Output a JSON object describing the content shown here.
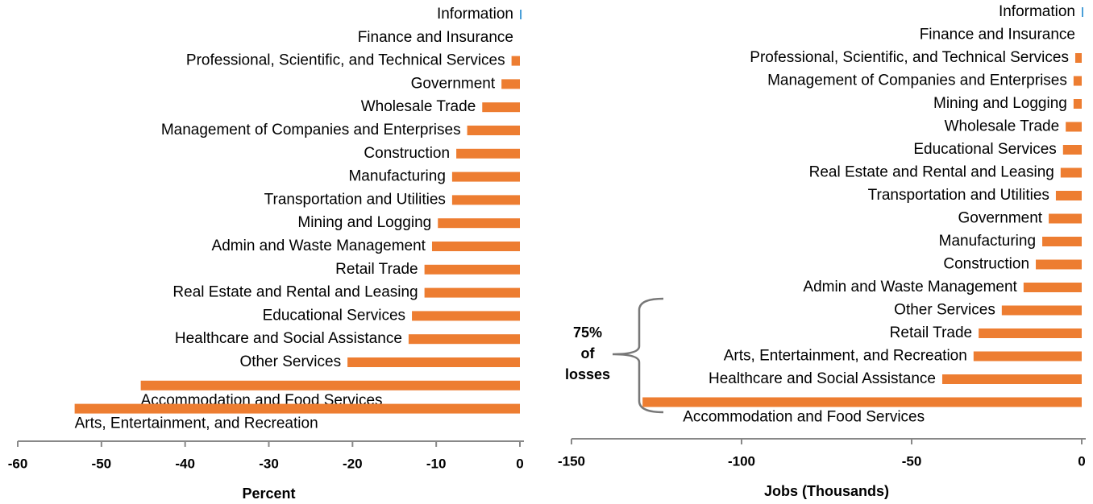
{
  "chart_data": [
    {
      "type": "bar",
      "orientation": "horizontal",
      "categories": [
        "Information",
        "Finance and Insurance",
        "Professional, Scientific, and Technical Services",
        "Government",
        "Wholesale Trade",
        "Management of Companies and Enterprises",
        "Construction",
        "Manufacturing",
        "Transportation and Utilities",
        "Mining and Logging",
        "Admin and Waste Management",
        "Retail Trade",
        "Real Estate and Rental and Leasing",
        "Educational Services",
        "Healthcare and Social Assistance",
        "Other Services",
        "Accommodation and Food Services",
        "Arts, Entertainment, and Recreation"
      ],
      "values": [
        0.2,
        0,
        -1.0,
        -2.2,
        -4.5,
        -6.3,
        -7.6,
        -8.1,
        -8.1,
        -9.8,
        -10.5,
        -11.4,
        -11.4,
        -12.9,
        -13.3,
        -20.6,
        -45.3,
        -53.2
      ],
      "colors": [
        "#4a9fd8",
        "#ed7d31",
        "#ed7d31",
        "#ed7d31",
        "#ed7d31",
        "#ed7d31",
        "#ed7d31",
        "#ed7d31",
        "#ed7d31",
        "#ed7d31",
        "#ed7d31",
        "#ed7d31",
        "#ed7d31",
        "#ed7d31",
        "#ed7d31",
        "#ed7d31",
        "#ed7d31",
        "#ed7d31"
      ],
      "xlim": [
        -60,
        0
      ],
      "xticks": [
        -60,
        -50,
        -40,
        -30,
        -20,
        -10,
        0
      ],
      "xlabel": "Percent"
    },
    {
      "type": "bar",
      "orientation": "horizontal",
      "categories": [
        "Information",
        "Finance and Insurance",
        "Professional, Scientific, and Technical Services",
        "Management of Companies and Enterprises",
        "Mining and Logging",
        "Wholesale Trade",
        "Educational Services",
        "Real Estate and Rental and Leasing",
        "Transportation and Utilities",
        "Government",
        "Manufacturing",
        "Construction",
        "Admin and Waste Management",
        "Other Services",
        "Retail Trade",
        "Arts, Entertainment, and Recreation",
        "Healthcare and Social Assistance",
        "Accommodation and Food Services"
      ],
      "values": [
        0.3,
        0,
        -1.9,
        -2.4,
        -2.4,
        -4.7,
        -5.5,
        -6.2,
        -7.6,
        -9.7,
        -11.6,
        -13.5,
        -17.1,
        -23.5,
        -30.3,
        -31.8,
        -41.0,
        -129.1
      ],
      "colors": [
        "#4a9fd8",
        "#ed7d31",
        "#ed7d31",
        "#ed7d31",
        "#ed7d31",
        "#ed7d31",
        "#ed7d31",
        "#ed7d31",
        "#ed7d31",
        "#ed7d31",
        "#ed7d31",
        "#ed7d31",
        "#ed7d31",
        "#ed7d31",
        "#ed7d31",
        "#ed7d31",
        "#ed7d31",
        "#ed7d31"
      ],
      "xlim": [
        -150,
        0
      ],
      "xticks": [
        -150,
        -100,
        -50,
        0
      ],
      "xlabel": "Jobs (Thousands)",
      "annotation": [
        "75%",
        "of",
        "losses"
      ]
    }
  ]
}
